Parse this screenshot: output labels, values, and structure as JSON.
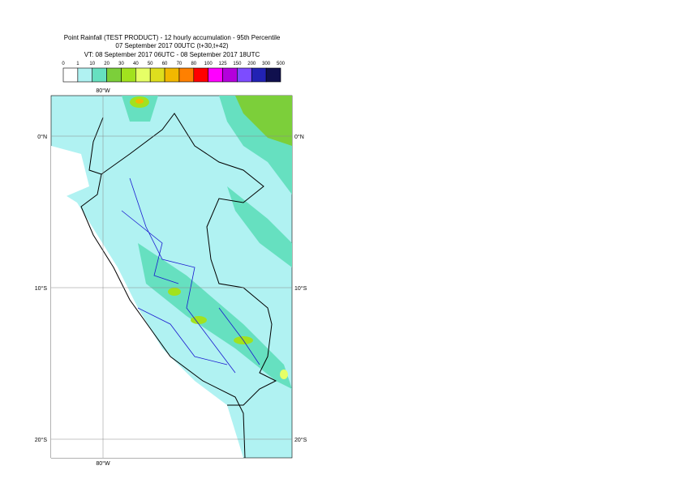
{
  "header": {
    "title": "Point Rainfall (TEST PRODUCT) - 12 hourly accumulation - 95th Percentile",
    "base_time": "07 September 2017 00UTC (t+30,t+42)",
    "valid_time": "VT: 08 September 2017 06UTC - 08 September 2017 18UTC"
  },
  "legend": {
    "thresholds": [
      0,
      1,
      10,
      20,
      30,
      40,
      50,
      60,
      70,
      80,
      100,
      125,
      150,
      200,
      300,
      500
    ],
    "colors": [
      "#ffffff",
      "#b0f2f2",
      "#66e0c0",
      "#7ccf3a",
      "#a2e21e",
      "#e6ff66",
      "#dede1e",
      "#f2b800",
      "#ff8000",
      "#ff0000",
      "#ff00ff",
      "#b400dc",
      "#7d4cff",
      "#2222b4",
      "#10104e"
    ]
  },
  "map": {
    "lon_label_top": "80°W",
    "lon_label_bottom": "80°W",
    "lat_labels_left": [
      "0°N",
      "10°S",
      "20°S"
    ],
    "lat_labels_right": [
      "0°N",
      "10°S",
      "20°S"
    ]
  }
}
